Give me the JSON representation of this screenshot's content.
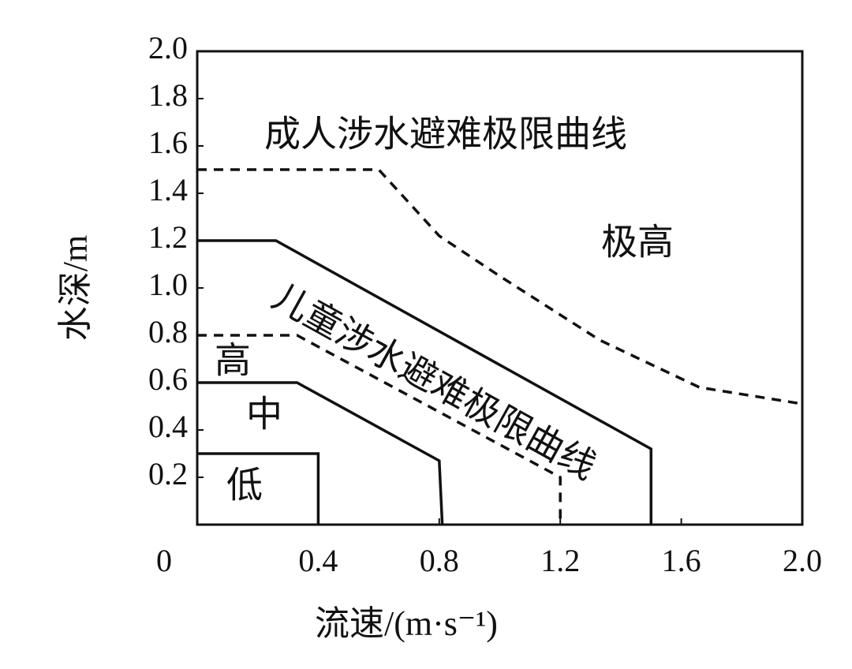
{
  "chart_data": {
    "type": "line",
    "xlabel": "流速/(m·s⁻¹)",
    "ylabel": "水深/m",
    "xlim": [
      0,
      2
    ],
    "ylim": [
      0,
      2
    ],
    "xticks": [
      0,
      0.4,
      0.8,
      1.2,
      1.6,
      {
        "value": 2,
        "label": "2.0"
      }
    ],
    "yticks": [
      0.2,
      0.4,
      0.6,
      0.8,
      {
        "value": 1,
        "label": "1.0"
      },
      1.2,
      1.4,
      1.6,
      1.8,
      {
        "value": 2,
        "label": "2.0"
      }
    ],
    "series": [
      {
        "color": "#111111",
        "style": "solid",
        "x": [
          0,
          0.4,
          0.4
        ],
        "values": [
          0.3,
          0.3,
          0
        ]
      },
      {
        "color": "#111111",
        "style": "solid",
        "x": [
          0,
          0.33,
          0.8,
          0.81
        ],
        "values": [
          0.6,
          0.6,
          0.27,
          0
        ]
      },
      {
        "color": "#111111",
        "style": "dashed",
        "x": [
          0,
          0.33,
          1.2,
          1.2
        ],
        "values": [
          0.8,
          0.8,
          0.2,
          0
        ]
      },
      {
        "color": "#111111",
        "style": "solid",
        "x": [
          0,
          0.26,
          1.5,
          1.5
        ],
        "values": [
          1.2,
          1.2,
          0.32,
          0
        ]
      },
      {
        "color": "#111111",
        "style": "dashed",
        "x": [
          0,
          0.6,
          0.8,
          1.0,
          1.33,
          1.66,
          2.0
        ],
        "values": [
          1.5,
          1.5,
          1.22,
          1.05,
          0.78,
          0.58,
          0.51
        ]
      }
    ],
    "annotations": [
      "成人涉水避难极限曲线",
      "极高",
      "儿童涉水避难极限曲线",
      "高",
      "中",
      "低"
    ]
  }
}
